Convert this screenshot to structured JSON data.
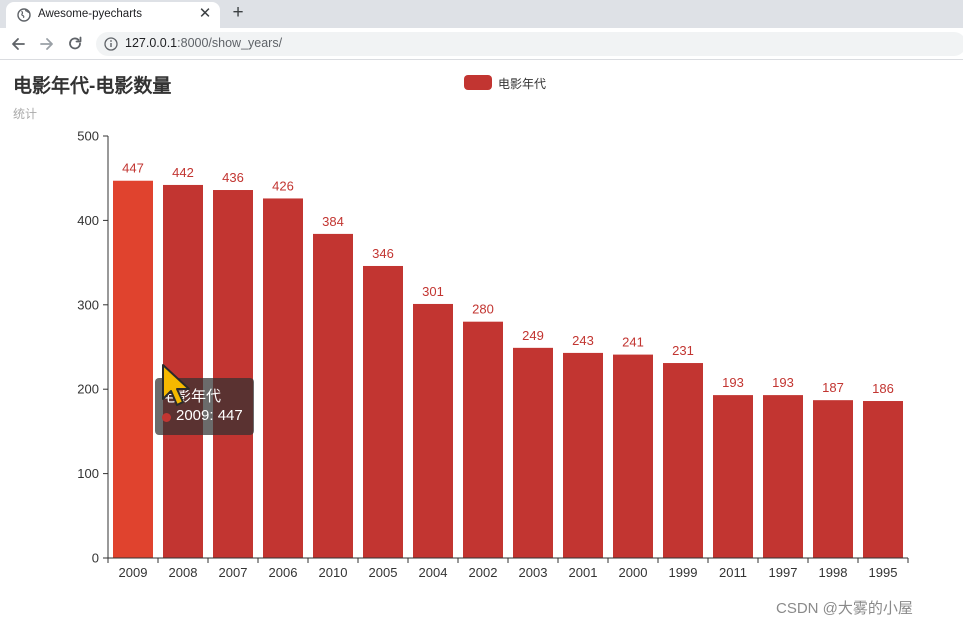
{
  "browser": {
    "tab_title": "Awesome-pyecharts",
    "url_host": "127.0.0.1",
    "url_rest": ":8000/show_years/"
  },
  "page": {
    "title": "电影年代-电影数量",
    "subtitle": "统计"
  },
  "colors": {
    "bar": "#c23531",
    "bar_hover": "#e0432e",
    "label": "#c23531",
    "axis": "#333333"
  },
  "chart_data": {
    "type": "bar",
    "title": "电影年代-电影数量",
    "subtitle": "统计",
    "legend": [
      "电影年代"
    ],
    "legend_position": "top-center",
    "categories": [
      "2009",
      "2008",
      "2007",
      "2006",
      "2010",
      "2005",
      "2004",
      "2002",
      "2003",
      "2001",
      "2000",
      "1999",
      "2011",
      "1997",
      "1998",
      "1995"
    ],
    "series": [
      {
        "name": "电影年代",
        "values": [
          447,
          442,
          436,
          426,
          384,
          346,
          301,
          280,
          249,
          243,
          241,
          231,
          193,
          193,
          187,
          186
        ]
      }
    ],
    "y_ticks": [
      0,
      100,
      200,
      300,
      400,
      500
    ],
    "ylim": [
      0,
      500
    ],
    "grid": false,
    "show_data_labels": true
  },
  "tooltip": {
    "title": "电影年代",
    "value_text": "2009: 447"
  },
  "watermark": "CSDN @大雾的小屋"
}
